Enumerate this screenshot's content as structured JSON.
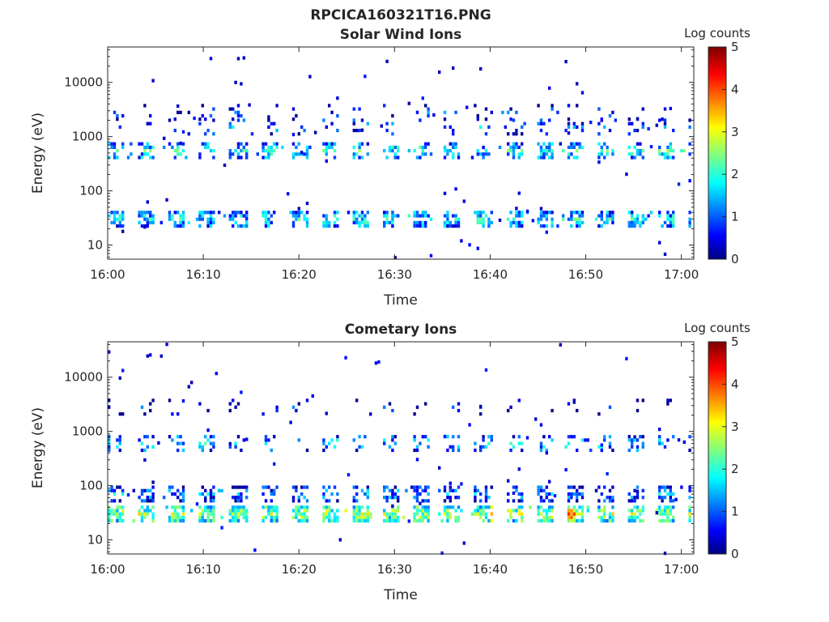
{
  "figure_title": "RPCICA160321T16.PNG",
  "colorbar": {
    "label": "Log counts",
    "ticks": [
      0,
      1,
      2,
      3,
      4,
      5
    ],
    "range": [
      0,
      5
    ],
    "colormap": "jet"
  },
  "chart_data": [
    {
      "type": "heatmap",
      "title": "Solar Wind Ions",
      "xlabel": "Time",
      "ylabel": "Energy (eV)",
      "x_ticks": [
        "16:00",
        "16:10",
        "16:20",
        "16:30",
        "16:40",
        "16:50",
        "17:00"
      ],
      "x_tick_minutes": [
        0,
        10,
        20,
        30,
        40,
        50,
        60
      ],
      "xlim_minutes": [
        0,
        61.3
      ],
      "y_scale": "log",
      "y_ticks": [
        10,
        100,
        1000,
        10000
      ],
      "ylim": [
        5.5,
        45000
      ],
      "bands": [
        {
          "energy_eV": 30,
          "mean_log_counts": 1.8,
          "fill": 0.62,
          "note": "main low-energy band"
        },
        {
          "energy_eV": 550,
          "mean_log_counts": 1.9,
          "fill": 0.45
        },
        {
          "energy_eV": 1500,
          "mean_log_counts": 1.2,
          "fill": 0.15
        },
        {
          "energy_eV": 2800,
          "mean_log_counts": 0.8,
          "fill": 0.1
        }
      ],
      "sweep_period_minutes": 3.2
    },
    {
      "type": "heatmap",
      "title": "Cometary Ions",
      "xlabel": "Time",
      "ylabel": "Energy (eV)",
      "x_ticks": [
        "16:00",
        "16:10",
        "16:20",
        "16:30",
        "16:40",
        "16:50",
        "17:00"
      ],
      "x_tick_minutes": [
        0,
        10,
        20,
        30,
        40,
        50,
        60
      ],
      "xlim_minutes": [
        0,
        61.3
      ],
      "y_scale": "log",
      "y_ticks": [
        10,
        100,
        1000,
        10000
      ],
      "ylim": [
        5.5,
        45000
      ],
      "bands": [
        {
          "energy_eV": 30,
          "mean_log_counts": 2.6,
          "fill": 0.75,
          "note": "strong low-energy band, peaks ~3.8 near 16:41 and 16:48"
        },
        {
          "energy_eV": 70,
          "mean_log_counts": 1.3,
          "fill": 0.45
        },
        {
          "energy_eV": 600,
          "mean_log_counts": 1.6,
          "fill": 0.3
        },
        {
          "energy_eV": 2800,
          "mean_log_counts": 0.6,
          "fill": 0.08
        }
      ],
      "sweep_period_minutes": 3.2
    }
  ]
}
